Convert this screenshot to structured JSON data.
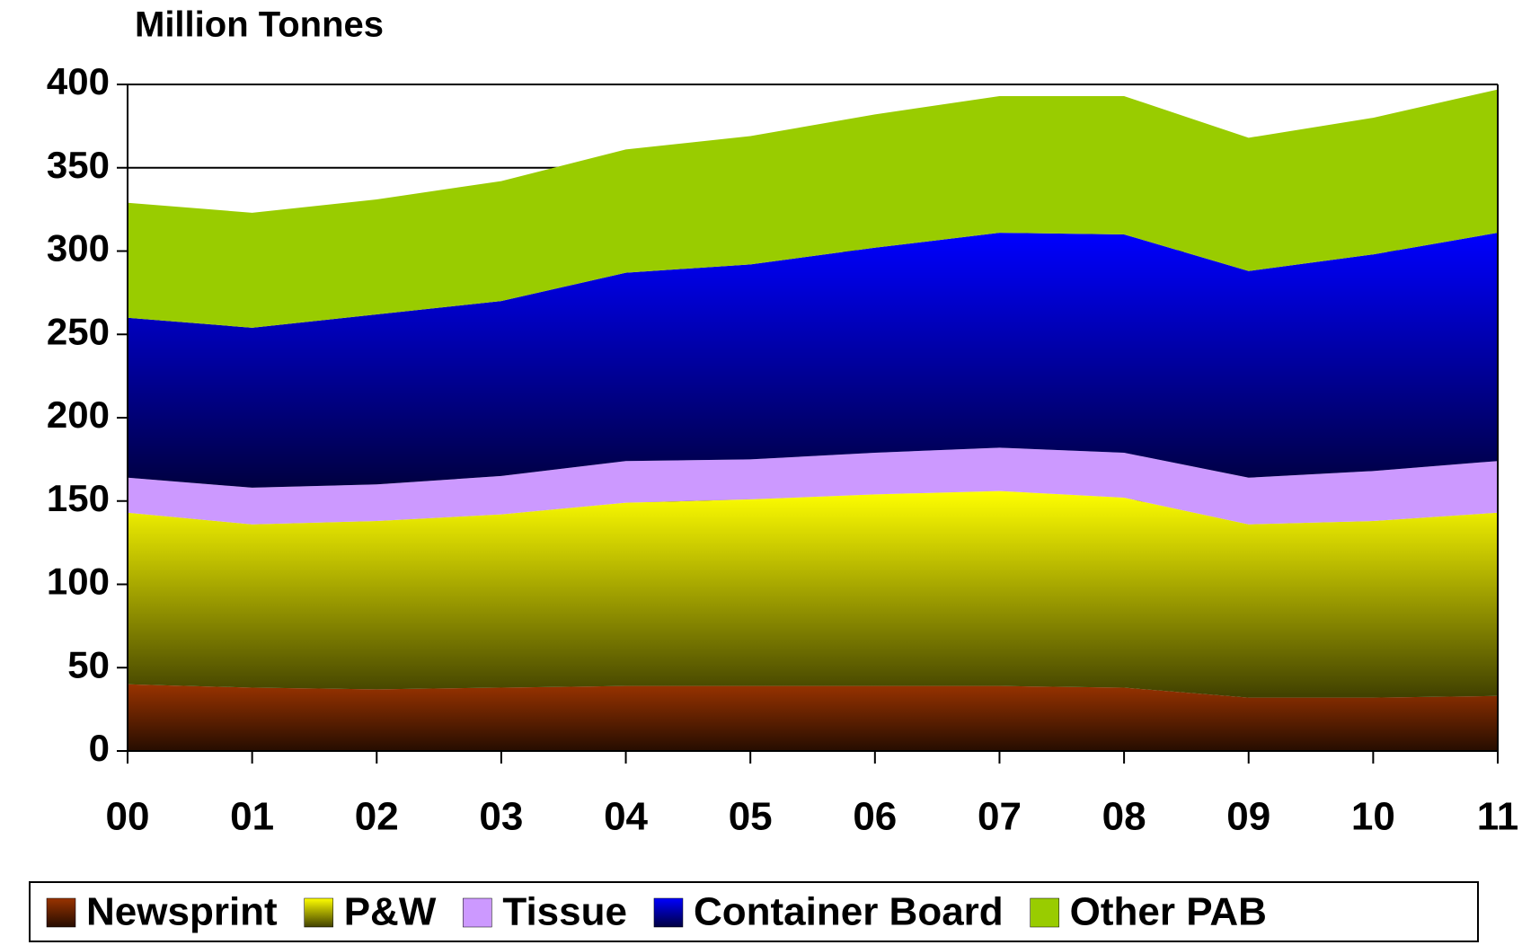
{
  "chart_data": {
    "type": "stacked_area",
    "y_label": "Million Tonnes",
    "categories": [
      "00",
      "01",
      "02",
      "03",
      "04",
      "05",
      "06",
      "07",
      "08",
      "09",
      "10",
      "11"
    ],
    "series": [
      {
        "name": "Newsprint",
        "color": "#993300",
        "values": [
          40,
          38,
          37,
          38,
          39,
          39,
          39,
          39,
          38,
          32,
          32,
          33
        ]
      },
      {
        "name": "P&W",
        "color": "#ffff00",
        "values": [
          103,
          98,
          101,
          104,
          110,
          112,
          115,
          117,
          114,
          104,
          106,
          110
        ]
      },
      {
        "name": "Tissue",
        "color": "#cc99ff",
        "values": [
          21,
          22,
          22,
          23,
          25,
          24,
          25,
          26,
          27,
          28,
          30,
          31
        ]
      },
      {
        "name": "Container Board",
        "color": "#0000ff",
        "values": [
          96,
          96,
          102,
          105,
          113,
          117,
          123,
          129,
          131,
          124,
          130,
          137
        ]
      },
      {
        "name": "Other PAB",
        "color": "#99cc00",
        "values": [
          69,
          69,
          69,
          72,
          74,
          77,
          80,
          82,
          83,
          80,
          82,
          86
        ]
      }
    ],
    "ylim": [
      0,
      400
    ],
    "yticks": [
      0,
      50,
      100,
      150,
      200,
      250,
      300,
      350,
      400
    ],
    "grid": true,
    "legend": "bottom"
  }
}
